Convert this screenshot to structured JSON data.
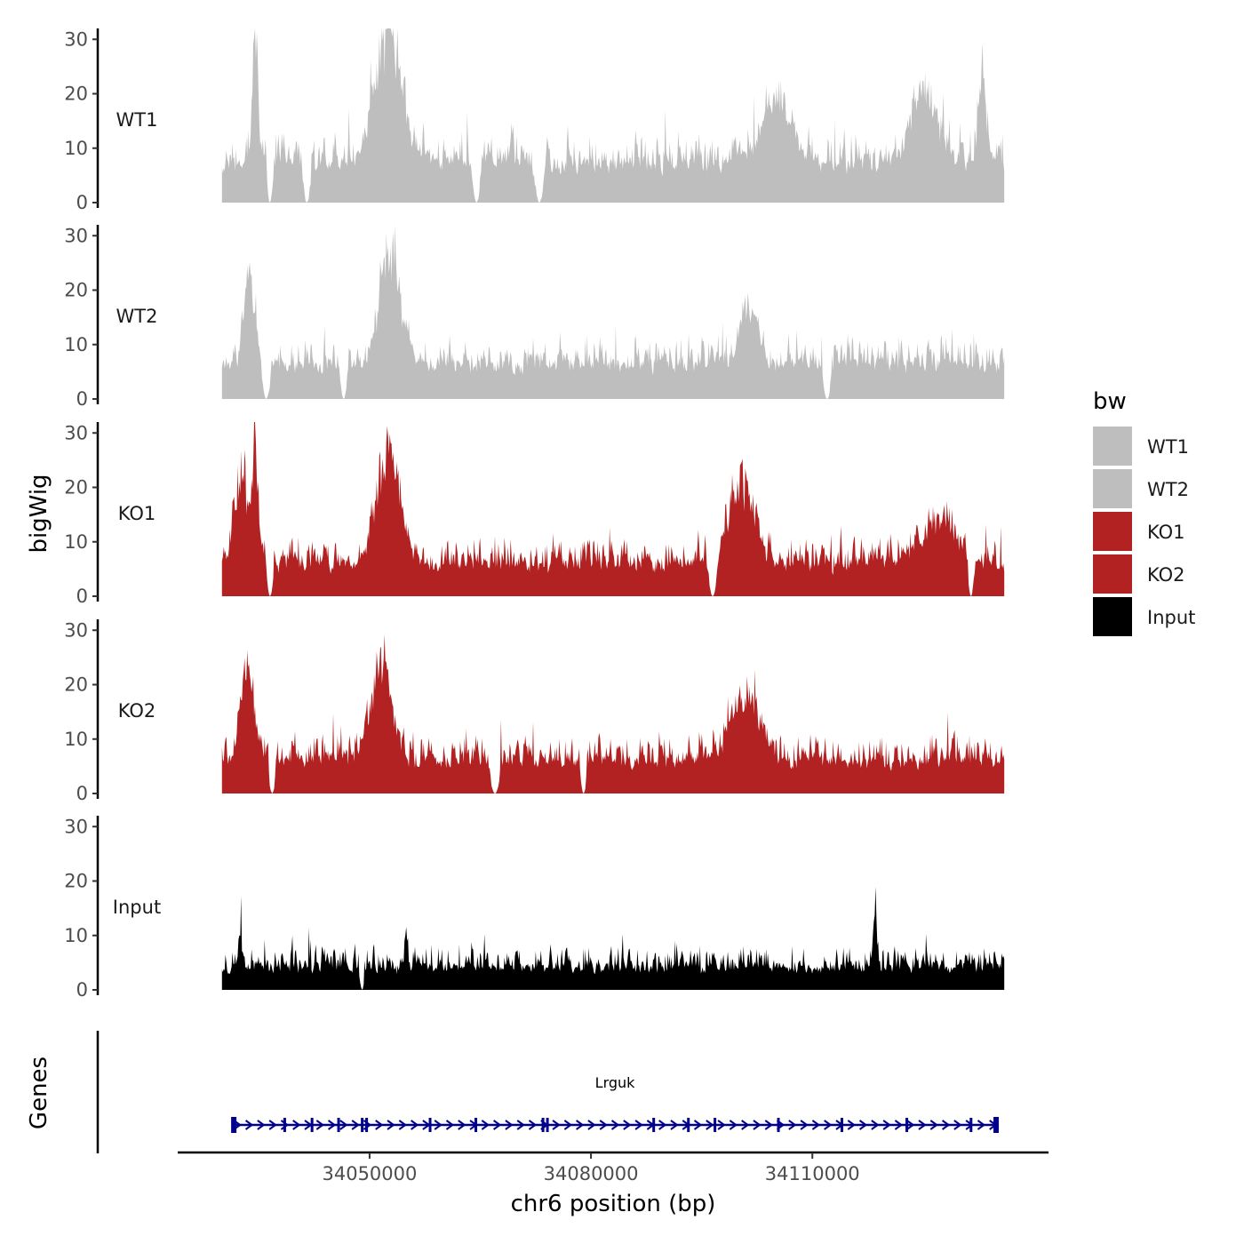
{
  "chart_data": {
    "type": "area",
    "y_axis_title": "bigWig",
    "x_axis_title": "chr6 position (bp)",
    "gene_track_title": "Genes",
    "ylim": [
      0,
      32
    ],
    "y_ticks": [
      0,
      10,
      20,
      30
    ],
    "y_tick_labels": [
      "0",
      "10",
      "20",
      "30"
    ],
    "xlim": [
      34024000,
      34142000
    ],
    "data_range": [
      34030000,
      34136000
    ],
    "x_ticks": [
      34050000,
      34080000,
      34110000
    ],
    "x_tick_labels": [
      "34050000",
      "34080000",
      "34110000"
    ],
    "legend": {
      "title": "bw",
      "entries": [
        {
          "label": "WT1",
          "color": "#bebebe"
        },
        {
          "label": "WT2",
          "color": "#bebebe"
        },
        {
          "label": "KO1",
          "color": "#b22222"
        },
        {
          "label": "KO2",
          "color": "#b22222"
        },
        {
          "label": "Input",
          "color": "#000000"
        }
      ]
    },
    "series": [
      {
        "name": "WT1",
        "color": "#bebebe",
        "base": 8,
        "noise": 5,
        "seed": 11,
        "peaks": [
          {
            "x": 34034500,
            "height": 28,
            "width": 500
          },
          {
            "x": 34052500,
            "height": 30,
            "width": 2500
          },
          {
            "x": 34105000,
            "height": 12,
            "width": 3000
          },
          {
            "x": 34125000,
            "height": 15,
            "width": 2500
          },
          {
            "x": 34133000,
            "height": 18,
            "width": 700
          }
        ],
        "dips": [
          {
            "x": 34036500,
            "width": 600
          },
          {
            "x": 34041500,
            "width": 700
          },
          {
            "x": 34064500,
            "width": 800
          },
          {
            "x": 34073000,
            "width": 900
          }
        ]
      },
      {
        "name": "WT2",
        "color": "#bebebe",
        "base": 7,
        "noise": 4.5,
        "seed": 23,
        "peaks": [
          {
            "x": 34033700,
            "height": 22,
            "width": 900
          },
          {
            "x": 34052800,
            "height": 24,
            "width": 2000
          },
          {
            "x": 34101500,
            "height": 13,
            "width": 1500
          }
        ],
        "dips": [
          {
            "x": 34036000,
            "width": 700
          },
          {
            "x": 34046500,
            "width": 700
          },
          {
            "x": 34112000,
            "width": 800
          }
        ]
      },
      {
        "name": "KO1",
        "color": "#b22222",
        "base": 6.5,
        "noise": 4.5,
        "seed": 37,
        "peaks": [
          {
            "x": 34032500,
            "height": 20,
            "width": 1200
          },
          {
            "x": 34034500,
            "height": 26,
            "width": 600
          },
          {
            "x": 34052500,
            "height": 25,
            "width": 2200
          },
          {
            "x": 34100500,
            "height": 16,
            "width": 2500
          },
          {
            "x": 34127000,
            "height": 10,
            "width": 3000
          }
        ],
        "dips": [
          {
            "x": 34036500,
            "width": 600
          },
          {
            "x": 34096500,
            "width": 800
          },
          {
            "x": 34131500,
            "width": 600
          }
        ]
      },
      {
        "name": "KO2",
        "color": "#b22222",
        "base": 6.5,
        "noise": 4.5,
        "seed": 51,
        "peaks": [
          {
            "x": 34033500,
            "height": 18,
            "width": 1400
          },
          {
            "x": 34051500,
            "height": 20,
            "width": 2000
          },
          {
            "x": 34101000,
            "height": 15,
            "width": 2500
          }
        ],
        "dips": [
          {
            "x": 34036800,
            "width": 600
          },
          {
            "x": 34067000,
            "width": 900
          },
          {
            "x": 34079000,
            "width": 600
          }
        ]
      },
      {
        "name": "Input",
        "color": "#000000",
        "base": 4.5,
        "noise": 3.5,
        "seed": 67,
        "peaks": [
          {
            "x": 34032500,
            "height": 10,
            "width": 300
          },
          {
            "x": 34055000,
            "height": 8,
            "width": 300
          },
          {
            "x": 34118500,
            "height": 12,
            "width": 300
          }
        ],
        "dips": [
          {
            "x": 34049000,
            "width": 500
          }
        ]
      }
    ],
    "gene": {
      "name": "Lrguk",
      "color": "#00008b",
      "start": 34031500,
      "end": 34135000,
      "strand": "+",
      "exons": [
        34031600,
        34038500,
        34042200,
        34045800,
        34049000,
        34049600,
        34058200,
        34064400,
        34073500,
        34074100,
        34088500,
        34093200,
        34096800,
        34105400,
        34114000,
        34122800,
        34131500,
        34134900
      ]
    }
  }
}
